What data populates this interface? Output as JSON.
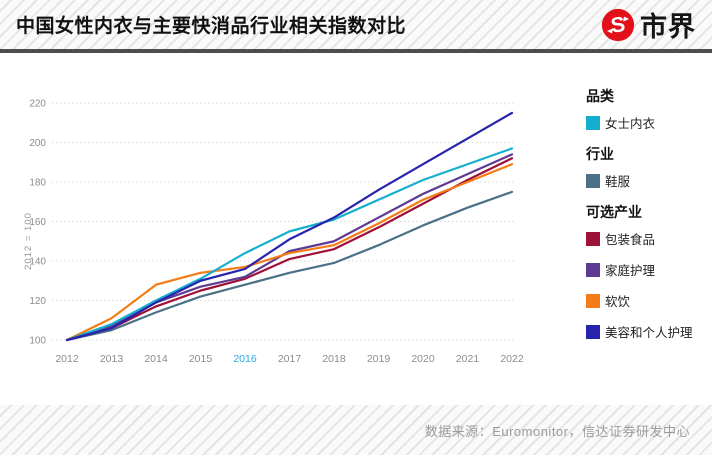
{
  "header": {
    "title": "中国女性内衣与主要快消品行业相关指数对比",
    "brand": "市界"
  },
  "footer": {
    "source": "数据来源：Euromonitor，信达证券研发中心"
  },
  "colors": {
    "logo_red": "#e3101a",
    "divider": "#4d4d4d",
    "grid": "#d9d9d9",
    "tick": "#8c8c8c",
    "highlight_tick": "#29abe2"
  },
  "chart_data": {
    "type": "line",
    "title": "中国女性内衣与主要快消品行业相关指数对比",
    "ylabel": "2012 = 100",
    "x": [
      "2012",
      "2013",
      "2014",
      "2015",
      "2016",
      "2017",
      "2018",
      "2019",
      "2020",
      "2021",
      "2022"
    ],
    "highlighted_xtick": "2016",
    "yticks": [
      100,
      120,
      140,
      160,
      180,
      200,
      220
    ],
    "ylim": [
      100,
      220
    ],
    "grid": true,
    "legend_position": "right",
    "legend_groups": [
      {
        "title": "品类",
        "items": [
          {
            "name": "女士内衣",
            "color": "#16aece"
          }
        ]
      },
      {
        "title": "行业",
        "items": [
          {
            "name": "鞋服",
            "color": "#4a7186"
          }
        ]
      },
      {
        "title": "可选产业",
        "items": [
          {
            "name": "包装食品",
            "color": "#9e1239"
          },
          {
            "name": "家庭护理",
            "color": "#5f3a93"
          },
          {
            "name": "软饮",
            "color": "#f47b16"
          },
          {
            "name": "美容和个人护理",
            "color": "#2823ad"
          }
        ]
      }
    ],
    "series": [
      {
        "name": "鞋服",
        "group": "行业",
        "color": "#4a7186",
        "values": [
          100,
          105,
          114,
          122,
          128,
          134,
          139,
          148,
          158,
          167,
          175
        ]
      },
      {
        "name": "包装食品",
        "group": "可选产业",
        "color": "#9e1239",
        "values": [
          100,
          106,
          117,
          125,
          131,
          141,
          146,
          157,
          169,
          181,
          192
        ]
      },
      {
        "name": "家庭护理",
        "group": "可选产业",
        "color": "#5f3a93",
        "values": [
          100,
          107,
          119,
          127,
          132,
          145,
          150,
          162,
          174,
          184,
          194
        ]
      },
      {
        "name": "软饮",
        "group": "可选产业",
        "color": "#f47b16",
        "values": [
          100,
          111,
          128,
          134,
          137,
          144,
          148,
          159,
          171,
          180,
          189
        ]
      },
      {
        "name": "女士内衣",
        "group": "品类",
        "color": "#16aece",
        "values": [
          100,
          108,
          120,
          131,
          144,
          155,
          161,
          171,
          181,
          189,
          197
        ]
      },
      {
        "name": "美容和个人护理",
        "group": "可选产业",
        "color": "#2823ad",
        "values": [
          100,
          106,
          119,
          130,
          136,
          151,
          162,
          176,
          189,
          202,
          215
        ]
      }
    ]
  }
}
